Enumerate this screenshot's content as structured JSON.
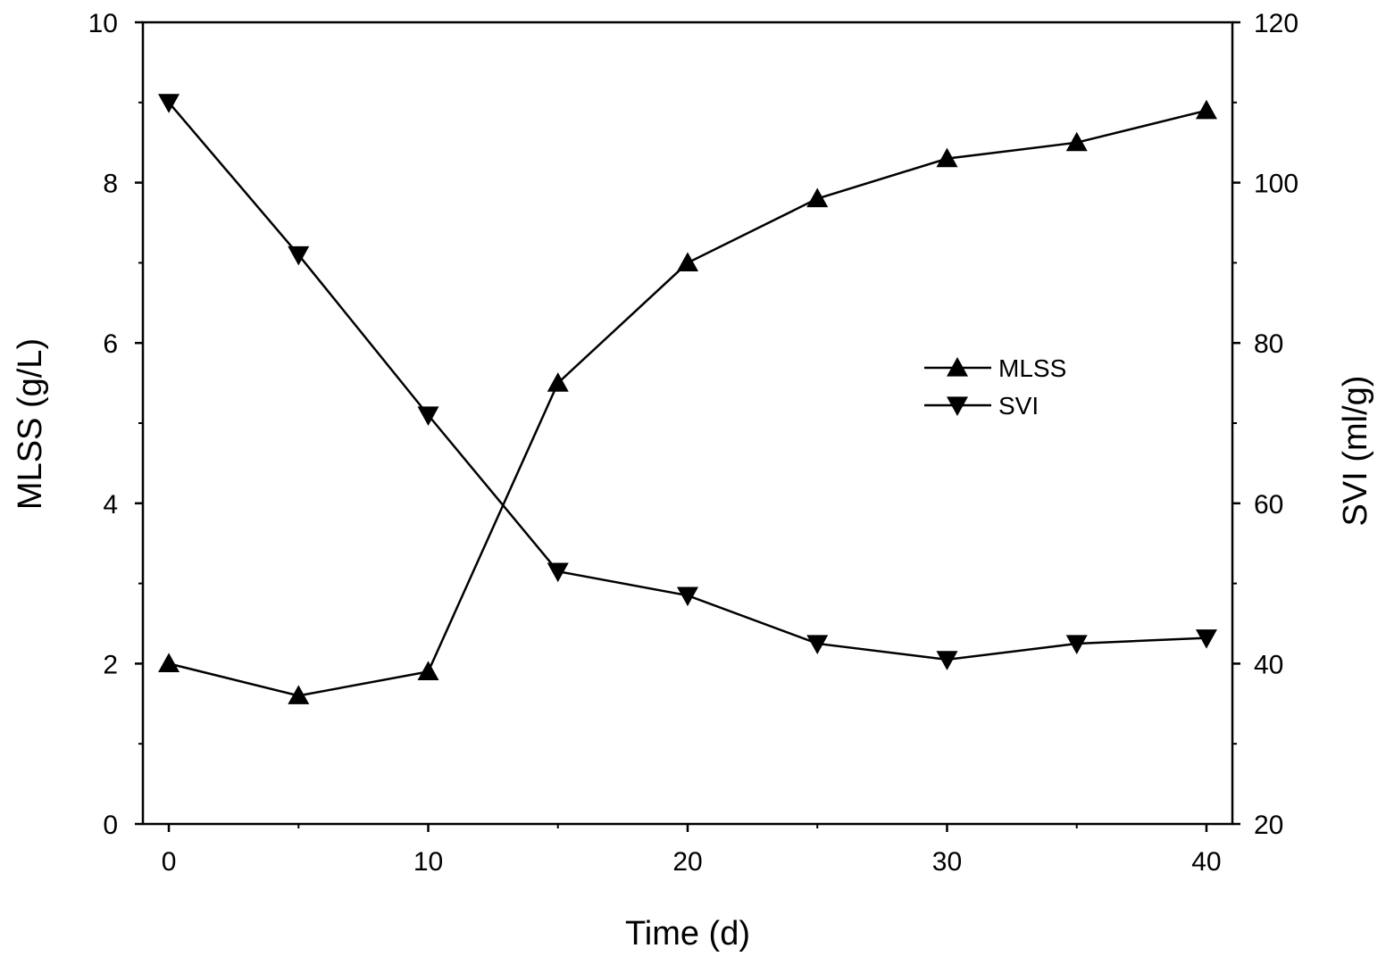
{
  "chart_data": {
    "type": "line",
    "x": [
      0,
      5,
      10,
      15,
      20,
      25,
      30,
      35,
      40
    ],
    "xlabel": "Time (d)",
    "ylabel": "MLSS (g/L)",
    "y2label": "SVI (ml/g)",
    "xlim": [
      -1,
      41
    ],
    "ylim": [
      0,
      10
    ],
    "y2lim": [
      20,
      120
    ],
    "xticks": [
      0,
      10,
      20,
      30,
      40
    ],
    "yticks": [
      0,
      2,
      4,
      6,
      8,
      10
    ],
    "y2ticks": [
      20,
      40,
      60,
      80,
      100,
      120
    ],
    "grid": false,
    "legend_position": "center-right",
    "series": [
      {
        "name": "MLSS",
        "axis": "left",
        "marker": "triangle-up",
        "color": "#000000",
        "values": [
          2.0,
          1.6,
          1.9,
          5.5,
          7.0,
          7.8,
          8.3,
          8.5,
          8.9
        ]
      },
      {
        "name": "SVI",
        "axis": "right",
        "marker": "triangle-down",
        "color": "#000000",
        "values": [
          110,
          91,
          71,
          51.5,
          48.5,
          42.5,
          40.5,
          42.5,
          43.2
        ]
      }
    ]
  }
}
